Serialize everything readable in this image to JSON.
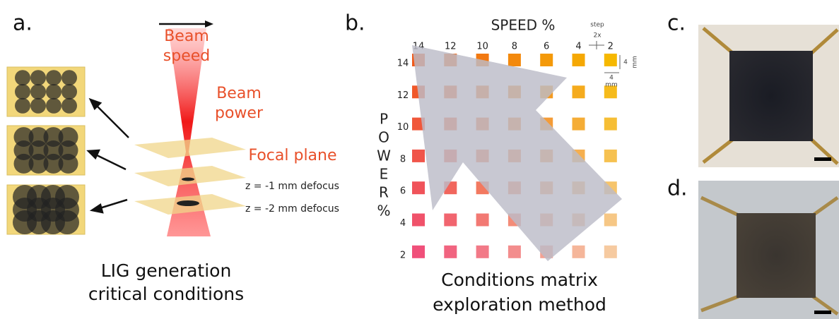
{
  "panel_a": {
    "label": "a.",
    "beam_speed": [
      "Beam",
      "speed"
    ],
    "beam_power": [
      "Beam",
      "power"
    ],
    "focal_plane": "Focal plane",
    "defocus": [
      "z = -1 mm defocus",
      "z = -2 mm defocus"
    ],
    "caption": [
      "LIG generation",
      "critical conditions"
    ]
  },
  "panel_b": {
    "label": "b.",
    "speed_title": "SPEED %",
    "speeds": [
      14,
      12,
      10,
      8,
      6,
      4,
      2
    ],
    "powers": [
      14,
      12,
      10,
      8,
      6,
      4,
      2
    ],
    "power_title": [
      "P",
      "O",
      "W",
      "E",
      "R",
      "%"
    ],
    "step": "step",
    "step_factor": "2x",
    "size_right": [
      "4",
      "mm"
    ],
    "size_bottom": [
      "4",
      "mm"
    ],
    "caption": [
      "Conditions matrix",
      "exploration method"
    ]
  },
  "panel_c": {
    "label": "c."
  },
  "panel_d": {
    "label": "d."
  }
}
